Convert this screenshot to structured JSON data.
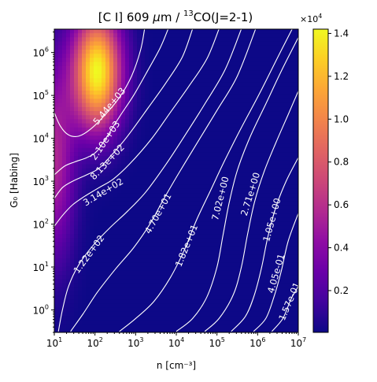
{
  "chart_data": {
    "type": "heatmap",
    "title_parts": {
      "pre": "[C I] 609 ",
      "mu": "μ",
      "mid": "m / ",
      "sup": "13",
      "post": "CO(J=2-1)"
    },
    "xlabel": "n [cm⁻³]",
    "ylabel": "G₀ [Habing]",
    "x_scale": "log",
    "y_scale": "log",
    "xlim": [
      10,
      10000000
    ],
    "ylim": [
      0.3,
      3500000
    ],
    "x_ticks": [
      {
        "value": 10,
        "base": "10",
        "exp": "1"
      },
      {
        "value": 100,
        "base": "10",
        "exp": "2"
      },
      {
        "value": 1000,
        "base": "10",
        "exp": "3"
      },
      {
        "value": 10000,
        "base": "10",
        "exp": "4"
      },
      {
        "value": 100000,
        "base": "10",
        "exp": "5"
      },
      {
        "value": 1000000,
        "base": "10",
        "exp": "6"
      },
      {
        "value": 10000000,
        "base": "10",
        "exp": "7"
      }
    ],
    "y_ticks": [
      {
        "value": 1,
        "base": "10",
        "exp": "0"
      },
      {
        "value": 10,
        "base": "10",
        "exp": "1"
      },
      {
        "value": 100,
        "base": "10",
        "exp": "2"
      },
      {
        "value": 1000,
        "base": "10",
        "exp": "3"
      },
      {
        "value": 10000,
        "base": "10",
        "exp": "4"
      },
      {
        "value": 100000,
        "base": "10",
        "exp": "5"
      },
      {
        "value": 1000000,
        "base": "10",
        "exp": "6"
      }
    ],
    "colormap": "plasma",
    "colorbar": {
      "multiplier": {
        "base": "×10",
        "exp": "4"
      },
      "range": [
        0.005,
        1.42
      ],
      "ticks": [
        {
          "value": 0.2,
          "label": "0.2"
        },
        {
          "value": 0.4,
          "label": "0.4"
        },
        {
          "value": 0.6,
          "label": "0.6"
        },
        {
          "value": 0.8,
          "label": "0.8"
        },
        {
          "value": 1.0,
          "label": "1.0"
        },
        {
          "value": 1.2,
          "label": "1.2"
        },
        {
          "value": 1.4,
          "label": "1.4"
        }
      ]
    },
    "peak": {
      "log_n": 2.05,
      "log_G0": 5.55,
      "value": 14000
    },
    "contours": [
      {
        "label": "5.44e+03",
        "points": [
          [
            1.0,
            4.6
          ],
          [
            1.15,
            4.28
          ],
          [
            1.35,
            4.08
          ],
          [
            1.6,
            4.05
          ],
          [
            1.9,
            4.22
          ],
          [
            2.25,
            4.55
          ],
          [
            2.6,
            4.95
          ],
          [
            2.9,
            5.45
          ],
          [
            3.12,
            6.05
          ],
          [
            3.22,
            6.55
          ]
        ],
        "label_at": [
          2.35,
          4.75
        ]
      },
      {
        "label": "2.10e+03",
        "points": [
          [
            1.0,
            3.15
          ],
          [
            1.25,
            3.35
          ],
          [
            1.5,
            3.45
          ],
          [
            1.8,
            3.55
          ],
          [
            2.05,
            3.7
          ],
          [
            2.3,
            4.05
          ],
          [
            2.6,
            4.5
          ],
          [
            2.95,
            5.0
          ],
          [
            3.25,
            5.5
          ],
          [
            3.6,
            6.1
          ],
          [
            3.8,
            6.55
          ]
        ],
        "label_at": [
          2.25,
          3.95
        ]
      },
      {
        "label": "8.13e+02",
        "points": [
          [
            1.0,
            2.6
          ],
          [
            1.2,
            2.85
          ],
          [
            1.45,
            3.0
          ],
          [
            1.8,
            3.15
          ],
          [
            2.1,
            3.3
          ],
          [
            2.4,
            3.6
          ],
          [
            2.8,
            4.05
          ],
          [
            3.3,
            4.7
          ],
          [
            3.75,
            5.3
          ],
          [
            4.15,
            5.9
          ],
          [
            4.4,
            6.55
          ]
        ],
        "label_at": [
          2.3,
          3.45
        ]
      },
      {
        "label": "3.14e+02",
        "points": [
          [
            1.0,
            1.95
          ],
          [
            1.2,
            2.2
          ],
          [
            1.45,
            2.45
          ],
          [
            1.75,
            2.65
          ],
          [
            2.1,
            2.85
          ],
          [
            2.45,
            3.05
          ],
          [
            2.85,
            3.4
          ],
          [
            3.4,
            4.0
          ],
          [
            3.85,
            4.6
          ],
          [
            4.3,
            5.2
          ],
          [
            4.75,
            5.85
          ],
          [
            5.05,
            6.55
          ]
        ],
        "label_at": [
          2.2,
          2.75
        ]
      },
      {
        "label": "1.22e+02",
        "points": [
          [
            1.1,
            -0.5
          ],
          [
            1.2,
            0.0
          ],
          [
            1.35,
            0.55
          ],
          [
            1.6,
            1.05
          ],
          [
            1.95,
            1.5
          ],
          [
            2.35,
            1.9
          ],
          [
            2.8,
            2.3
          ],
          [
            3.25,
            2.75
          ],
          [
            3.75,
            3.4
          ],
          [
            4.2,
            4.05
          ],
          [
            4.7,
            4.8
          ],
          [
            5.2,
            5.6
          ],
          [
            5.6,
            6.55
          ]
        ],
        "label_at": [
          1.85,
          1.3
        ]
      },
      {
        "label": "4.70e+01",
        "points": [
          [
            1.4,
            -0.5
          ],
          [
            1.7,
            -0.1
          ],
          [
            2.05,
            0.4
          ],
          [
            2.5,
            0.95
          ],
          [
            2.95,
            1.45
          ],
          [
            3.35,
            2.0
          ],
          [
            3.7,
            2.6
          ],
          [
            4.1,
            3.25
          ],
          [
            4.55,
            3.95
          ],
          [
            5.0,
            4.65
          ],
          [
            5.5,
            5.45
          ],
          [
            5.95,
            6.55
          ]
        ],
        "label_at": [
          3.55,
          2.25
        ]
      },
      {
        "label": "1.82e+01",
        "points": [
          [
            2.6,
            -0.5
          ],
          [
            3.0,
            -0.2
          ],
          [
            3.45,
            0.2
          ],
          [
            3.85,
            0.75
          ],
          [
            4.2,
            1.4
          ],
          [
            4.5,
            2.1
          ],
          [
            4.85,
            2.8
          ],
          [
            5.2,
            3.5
          ],
          [
            5.6,
            4.25
          ],
          [
            6.05,
            5.05
          ],
          [
            6.5,
            5.9
          ],
          [
            6.85,
            6.55
          ]
        ],
        "label_at": [
          4.25,
          1.5
        ]
      },
      {
        "label": "7.02e+00",
        "points": [
          [
            4.0,
            -0.5
          ],
          [
            4.4,
            -0.2
          ],
          [
            4.75,
            0.3
          ],
          [
            5.0,
            1.0
          ],
          [
            5.15,
            1.75
          ],
          [
            5.3,
            2.5
          ],
          [
            5.5,
            3.25
          ],
          [
            5.8,
            4.0
          ],
          [
            6.2,
            4.8
          ],
          [
            6.6,
            5.6
          ],
          [
            7.0,
            6.35
          ]
        ],
        "label_at": [
          5.08,
          2.6
        ]
      },
      {
        "label": "2.71e+00",
        "points": [
          [
            4.7,
            -0.5
          ],
          [
            5.05,
            -0.2
          ],
          [
            5.4,
            0.35
          ],
          [
            5.6,
            1.0
          ],
          [
            5.75,
            1.75
          ],
          [
            5.92,
            2.5
          ],
          [
            6.15,
            3.2
          ],
          [
            6.45,
            3.9
          ],
          [
            6.75,
            4.55
          ],
          [
            7.0,
            5.1
          ]
        ],
        "label_at": [
          5.82,
          2.7
        ]
      },
      {
        "label": "1.05e+00",
        "points": [
          [
            5.35,
            -0.5
          ],
          [
            5.7,
            -0.15
          ],
          [
            5.92,
            0.35
          ],
          [
            6.1,
            1.0
          ],
          [
            6.25,
            1.7
          ],
          [
            6.45,
            2.4
          ],
          [
            6.7,
            3.0
          ],
          [
            7.0,
            3.55
          ]
        ],
        "label_at": [
          6.35,
          2.1
        ]
      },
      {
        "label": "4.05e-01",
        "points": [
          [
            5.9,
            -0.5
          ],
          [
            6.2,
            -0.2
          ],
          [
            6.4,
            0.3
          ],
          [
            6.58,
            0.9
          ],
          [
            6.75,
            1.6
          ],
          [
            7.0,
            2.25
          ]
        ],
        "label_at": [
          6.45,
          0.85
        ]
      },
      {
        "label": "1.57e-01",
        "points": [
          [
            6.35,
            -0.5
          ],
          [
            6.62,
            -0.2
          ],
          [
            6.82,
            0.25
          ],
          [
            7.0,
            0.55
          ]
        ],
        "label_at": [
          6.78,
          0.2
        ]
      }
    ]
  }
}
